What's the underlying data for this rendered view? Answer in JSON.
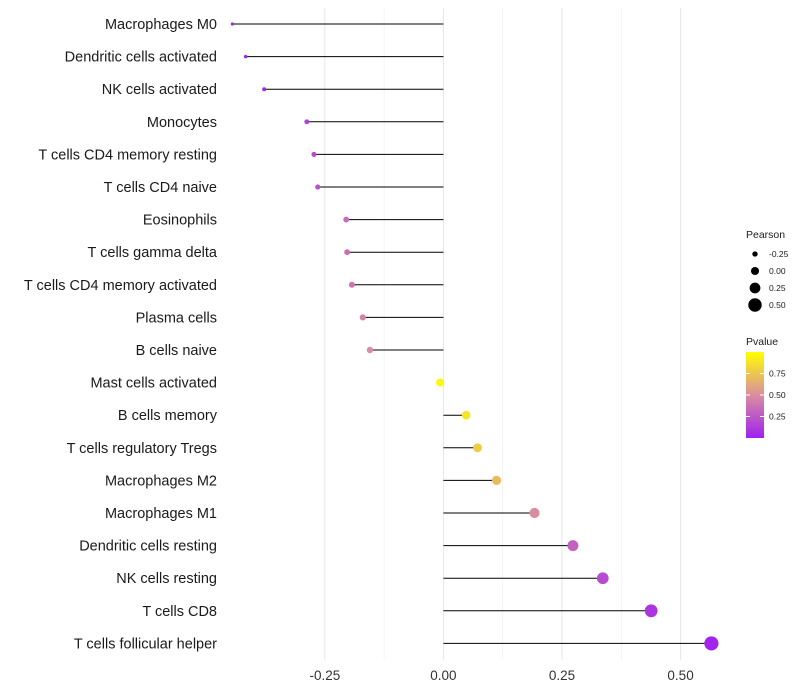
{
  "chart_data": {
    "type": "lollipop",
    "title": "",
    "xlabel": "",
    "ylabel": "",
    "xlim": [
      -0.45,
      0.6
    ],
    "x_ticks": [
      -0.25,
      0.0,
      0.25,
      0.5
    ],
    "x_tick_labels": [
      "-0.25",
      "0.00",
      "0.25",
      "0.50"
    ],
    "categories": [
      "Macrophages M0",
      "Dendritic cells activated",
      "NK cells activated",
      "Monocytes",
      "T cells CD4 memory resting",
      "T cells CD4 naive",
      "Eosinophils",
      "T cells gamma delta",
      "T cells CD4 memory activated",
      "Plasma cells",
      "B cells naive",
      "Mast cells activated",
      "B cells memory",
      "T cells regulatory  Tregs ",
      "Macrophages M2",
      "Macrophages M1",
      "Dendritic cells resting",
      "NK cells resting",
      "T cells CD8",
      "T cells follicular helper"
    ],
    "pearson": [
      -0.445,
      -0.417,
      -0.378,
      -0.288,
      -0.273,
      -0.265,
      -0.205,
      -0.203,
      -0.193,
      -0.17,
      -0.155,
      -0.007,
      0.048,
      0.072,
      0.112,
      0.192,
      0.273,
      0.336,
      0.438,
      0.565
    ],
    "pvalue": [
      0.01,
      0.02,
      0.03,
      0.15,
      0.2,
      0.22,
      0.35,
      0.36,
      0.38,
      0.45,
      0.5,
      0.97,
      0.88,
      0.78,
      0.7,
      0.5,
      0.3,
      0.2,
      0.1,
      0.02
    ],
    "legend_size": {
      "title": "Pearson",
      "values": [
        -0.25,
        0.0,
        0.25,
        0.5
      ],
      "labels": [
        "-0.25",
        "0.00",
        "0.25",
        "0.50"
      ]
    },
    "legend_color": {
      "title": "Pvalue",
      "ticks": [
        0.25,
        0.5,
        0.75
      ],
      "labels": [
        "0.25",
        "0.50",
        "0.75"
      ],
      "low_color": "#a020f0",
      "mid_color": "#d98ea0",
      "high_color": "#ffff00",
      "range": [
        0.0,
        1.0
      ]
    },
    "stem_color": "#000000",
    "grid": true
  }
}
